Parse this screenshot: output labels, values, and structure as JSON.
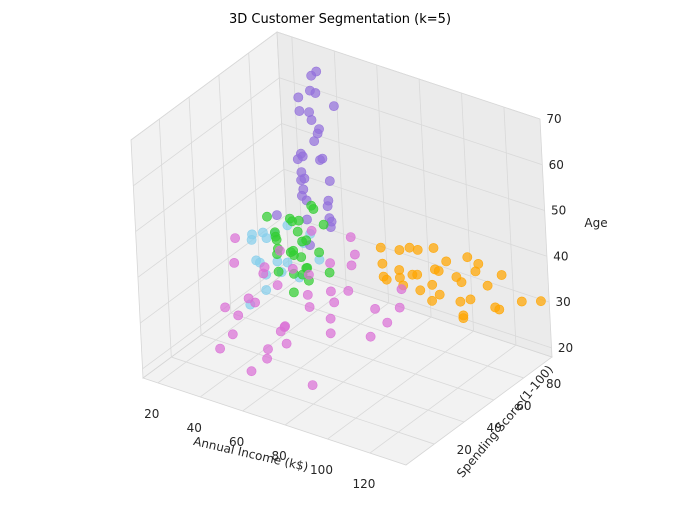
{
  "chart_data": {
    "type": "scatter",
    "title": "3D Customer Segmentation (k=5)",
    "xlabel": "Annual Income (k$)",
    "ylabel": "Spending Score (1-100)",
    "zlabel": "Age",
    "x_ticks": [
      20,
      40,
      60,
      80,
      100,
      120
    ],
    "y_ticks": [
      20,
      40,
      60,
      80
    ],
    "z_ticks": [
      20,
      30,
      40,
      50,
      60,
      70
    ],
    "xlim": [
      13,
      137
    ],
    "ylim": [
      1,
      99
    ],
    "zlim": [
      18,
      70
    ],
    "grid": true,
    "series": [
      {
        "color": "#87ceeb",
        "points": [
          [
            16,
            80,
            22
          ],
          [
            17,
            75,
            26
          ],
          [
            18,
            85,
            24
          ],
          [
            19,
            70,
            28
          ],
          [
            20,
            90,
            31
          ],
          [
            21,
            65,
            34
          ],
          [
            22,
            82,
            23
          ],
          [
            23,
            72,
            33
          ],
          [
            25,
            60,
            37
          ],
          [
            26,
            88,
            21
          ],
          [
            28,
            78,
            27
          ],
          [
            30,
            68,
            36
          ],
          [
            31,
            85,
            30
          ],
          [
            33,
            92,
            25
          ],
          [
            34,
            55,
            40
          ],
          [
            27,
            95,
            29
          ],
          [
            29,
            62,
            25
          ],
          [
            24,
            58,
            22
          ]
        ]
      },
      {
        "color": "#9370db",
        "points": [
          [
            30,
            88,
            58
          ],
          [
            32,
            85,
            62
          ],
          [
            35,
            90,
            66
          ],
          [
            37,
            86,
            64
          ],
          [
            40,
            82,
            59
          ],
          [
            42,
            78,
            62
          ],
          [
            44,
            80,
            66
          ],
          [
            46,
            75,
            57
          ],
          [
            48,
            77,
            53
          ],
          [
            50,
            72,
            60
          ],
          [
            52,
            70,
            55
          ],
          [
            54,
            73,
            50
          ],
          [
            56,
            68,
            46
          ],
          [
            58,
            66,
            48
          ],
          [
            60,
            64,
            43
          ],
          [
            62,
            62,
            45
          ],
          [
            34,
            80,
            50
          ],
          [
            38,
            76,
            47
          ],
          [
            41,
            72,
            45
          ],
          [
            43,
            70,
            55
          ],
          [
            45,
            67,
            52
          ],
          [
            47,
            65,
            49
          ],
          [
            49,
            63,
            57
          ],
          [
            51,
            61,
            44
          ],
          [
            53,
            58,
            54
          ],
          [
            36,
            92,
            54
          ],
          [
            39,
            88,
            68
          ],
          [
            55,
            56,
            50
          ],
          [
            57,
            54,
            41
          ],
          [
            33,
            66,
            41
          ],
          [
            60,
            70,
            68
          ],
          [
            64,
            58,
            47
          ]
        ]
      },
      {
        "color": "#32cd32",
        "points": [
          [
            40,
            55,
            40
          ],
          [
            42,
            52,
            42
          ],
          [
            44,
            50,
            38
          ],
          [
            46,
            48,
            40
          ],
          [
            48,
            45,
            36
          ],
          [
            50,
            42,
            44
          ],
          [
            52,
            50,
            39
          ],
          [
            54,
            47,
            41
          ],
          [
            56,
            44,
            37
          ],
          [
            58,
            40,
            43
          ],
          [
            60,
            38,
            35
          ],
          [
            62,
            45,
            45
          ],
          [
            64,
            42,
            40
          ],
          [
            66,
            40,
            38
          ],
          [
            68,
            36,
            42
          ],
          [
            45,
            58,
            44
          ],
          [
            47,
            60,
            41
          ],
          [
            49,
            54,
            45
          ],
          [
            51,
            56,
            37
          ],
          [
            53,
            53,
            46
          ],
          [
            55,
            51,
            35
          ],
          [
            57,
            49,
            43
          ],
          [
            59,
            57,
            39
          ],
          [
            61,
            52,
            50
          ],
          [
            63,
            48,
            52
          ],
          [
            43,
            46,
            47
          ],
          [
            65,
            55,
            36
          ],
          [
            67,
            50,
            48
          ]
        ]
      },
      {
        "color": "#da70d6",
        "points": [
          [
            38,
            30,
            40
          ],
          [
            40,
            20,
            33
          ],
          [
            42,
            26,
            47
          ],
          [
            44,
            10,
            27
          ],
          [
            46,
            16,
            29
          ],
          [
            48,
            35,
            38
          ],
          [
            50,
            22,
            36
          ],
          [
            52,
            12,
            35
          ],
          [
            54,
            28,
            42
          ],
          [
            56,
            18,
            37
          ],
          [
            58,
            33,
            45
          ],
          [
            60,
            8,
            25
          ],
          [
            62,
            25,
            40
          ],
          [
            64,
            14,
            29
          ],
          [
            66,
            30,
            43
          ],
          [
            68,
            20,
            33
          ],
          [
            70,
            38,
            50
          ],
          [
            72,
            15,
            35
          ],
          [
            74,
            28,
            39
          ],
          [
            76,
            10,
            33
          ],
          [
            78,
            24,
            45
          ],
          [
            80,
            35,
            39
          ],
          [
            82,
            18,
            40
          ],
          [
            84,
            30,
            47
          ],
          [
            86,
            12,
            25
          ],
          [
            88,
            26,
            40
          ],
          [
            90,
            20,
            35
          ],
          [
            92,
            33,
            47
          ],
          [
            94,
            15,
            40
          ],
          [
            96,
            28,
            55
          ],
          [
            98,
            22,
            45
          ],
          [
            100,
            36,
            38
          ],
          [
            105,
            18,
            55
          ],
          [
            110,
            30,
            38
          ],
          [
            115,
            12,
            40
          ],
          [
            120,
            25,
            44
          ],
          [
            125,
            20,
            50
          ],
          [
            70,
            5,
            30
          ],
          [
            75,
            8,
            36
          ]
        ]
      },
      {
        "color": "#ffa500",
        "points": [
          [
            70,
            85,
            28
          ],
          [
            72,
            80,
            33
          ],
          [
            74,
            88,
            30
          ],
          [
            76,
            75,
            32
          ],
          [
            78,
            90,
            35
          ],
          [
            80,
            82,
            29
          ],
          [
            82,
            78,
            38
          ],
          [
            84,
            86,
            31
          ],
          [
            86,
            72,
            34
          ],
          [
            88,
            92,
            36
          ],
          [
            90,
            79,
            39
          ],
          [
            92,
            84,
            27
          ],
          [
            94,
            74,
            32
          ],
          [
            96,
            89,
            35
          ],
          [
            98,
            81,
            30
          ],
          [
            100,
            76,
            37
          ],
          [
            102,
            87,
            33
          ],
          [
            104,
            73,
            38
          ],
          [
            106,
            90,
            28
          ],
          [
            108,
            82,
            34
          ],
          [
            110,
            78,
            31
          ],
          [
            112,
            86,
            36
          ],
          [
            114,
            74,
            29
          ],
          [
            116,
            88,
            33
          ],
          [
            118,
            80,
            40
          ],
          [
            120,
            92,
            35
          ],
          [
            124,
            84,
            30
          ],
          [
            128,
            76,
            33
          ],
          [
            132,
            88,
            32
          ],
          [
            136,
            95,
            31
          ],
          [
            79,
            70,
            40
          ],
          [
            85,
            94,
            27
          ],
          [
            95,
            68,
            37
          ],
          [
            101,
            96,
            35
          ],
          [
            117,
            70,
            31
          ]
        ]
      }
    ]
  }
}
